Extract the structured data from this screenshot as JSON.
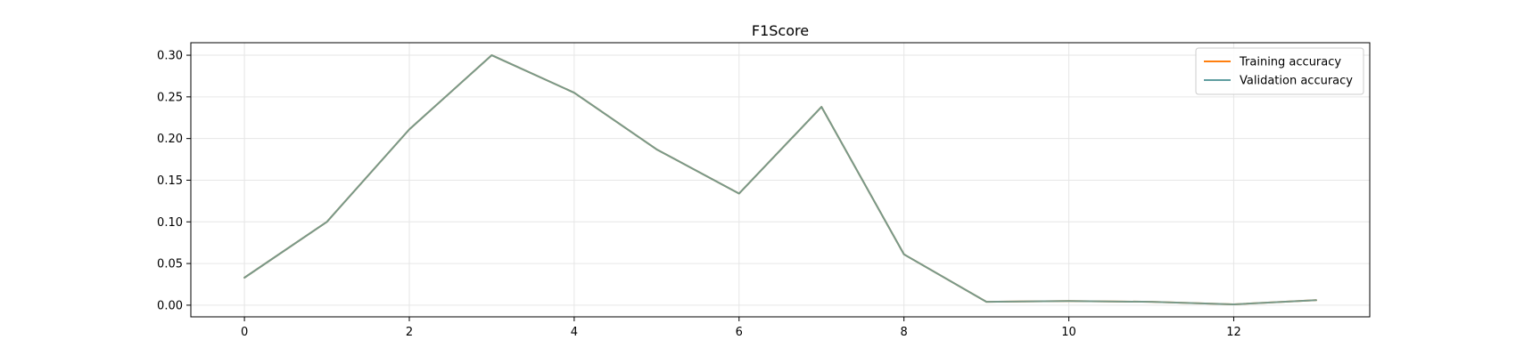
{
  "chart_data": {
    "type": "line",
    "title": "F1Score",
    "xlabel": "",
    "ylabel": "",
    "xlim": [
      -0.65,
      13.65
    ],
    "ylim": [
      -0.014,
      0.315
    ],
    "xticks": [
      0,
      2,
      4,
      6,
      8,
      10,
      12
    ],
    "yticks": [
      0.0,
      0.05,
      0.1,
      0.15,
      0.2,
      0.25,
      0.3
    ],
    "ytick_labels": [
      "0.00",
      "0.05",
      "0.10",
      "0.15",
      "0.20",
      "0.25",
      "0.30"
    ],
    "grid": true,
    "legend_position": "top-right",
    "x": [
      0,
      1,
      2,
      3,
      4,
      5,
      6,
      7,
      8,
      9,
      10,
      11,
      12,
      13
    ],
    "series": [
      {
        "name": "Training accuracy",
        "color": "#ff7f0e",
        "values": [
          0.033,
          0.1,
          0.211,
          0.3,
          0.255,
          0.187,
          0.134,
          0.238,
          0.061,
          0.004,
          0.005,
          0.004,
          0.001,
          0.006
        ]
      },
      {
        "name": "Validation accuracy",
        "color": "#5f9ea0",
        "values": [
          0.033,
          0.1,
          0.211,
          0.3,
          0.255,
          0.187,
          0.134,
          0.238,
          0.061,
          0.004,
          0.005,
          0.004,
          0.001,
          0.006
        ]
      }
    ]
  }
}
